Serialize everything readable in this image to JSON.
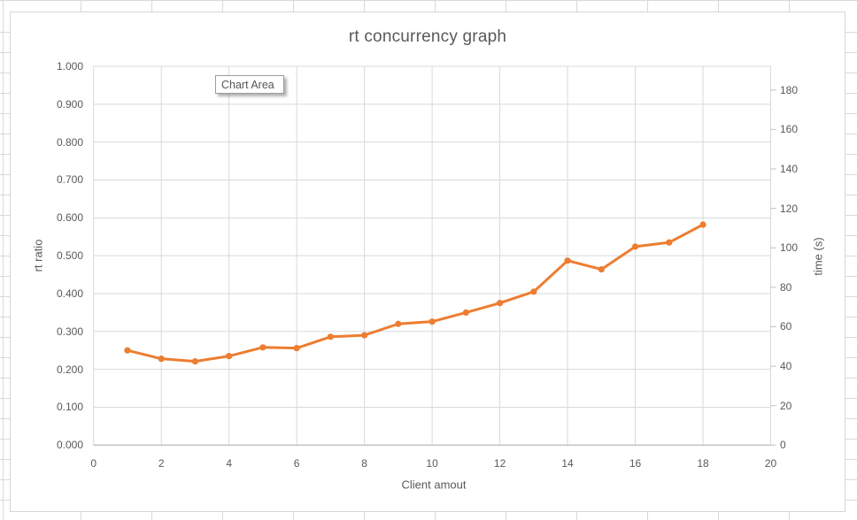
{
  "window": {
    "tooltip_label": "Chart Area"
  },
  "chart_data": {
    "type": "line",
    "title": "rt concurrency graph",
    "xlabel": "Client amout",
    "ylabel_left": "rt ratio",
    "ylabel_right": "time (s)",
    "x": [
      1,
      2,
      3,
      4,
      5,
      6,
      7,
      8,
      9,
      10,
      11,
      12,
      13,
      14,
      15,
      16,
      17,
      18
    ],
    "series": [
      {
        "name": "rt ratio",
        "axis": "left",
        "marker": "circle",
        "values": [
          0.25,
          0.228,
          0.221,
          0.235,
          0.258,
          0.256,
          0.286,
          0.29,
          0.32,
          0.326,
          0.35,
          0.375,
          0.405,
          0.487,
          0.464,
          0.524,
          0.535,
          0.582
        ]
      }
    ],
    "x_ticks": [
      0,
      2,
      4,
      6,
      8,
      10,
      12,
      14,
      16,
      18,
      20
    ],
    "y_ticks_left": [
      "0.000",
      "0.100",
      "0.200",
      "0.300",
      "0.400",
      "0.500",
      "0.600",
      "0.700",
      "0.800",
      "0.900",
      "1.000"
    ],
    "y_ticks_right": [
      0,
      20,
      40,
      60,
      80,
      100,
      120,
      140,
      160,
      180
    ],
    "xlim": [
      0,
      20
    ],
    "ylim_left": [
      0.0,
      1.0
    ],
    "ylim_right": [
      0,
      192
    ],
    "grid": true,
    "legend": "none",
    "colors": {
      "series": "#ED7D31",
      "gridline": "#D9D9D9",
      "axis_line": "#BFBFBF",
      "text": "#595959",
      "chart_border": "#D6D6D6"
    }
  }
}
